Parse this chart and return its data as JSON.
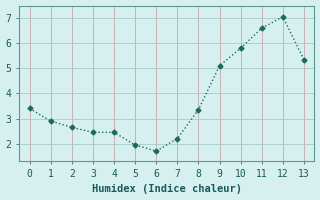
{
  "x": [
    0,
    1,
    2,
    3,
    4,
    5,
    6,
    7,
    8,
    9,
    10,
    11,
    12,
    13
  ],
  "y": [
    3.4,
    2.9,
    2.65,
    2.45,
    2.45,
    1.95,
    1.7,
    2.2,
    3.35,
    5.1,
    5.8,
    6.6,
    7.05,
    5.35
  ],
  "xlabel": "Humidex (Indice chaleur)",
  "xlim": [
    -0.5,
    13.5
  ],
  "ylim": [
    1.3,
    7.5
  ],
  "yticks": [
    2,
    3,
    4,
    5,
    6,
    7
  ],
  "xticks": [
    0,
    1,
    2,
    3,
    4,
    5,
    6,
    7,
    8,
    9,
    10,
    11,
    12,
    13
  ],
  "line_color": "#1a6b5a",
  "marker": "D",
  "marker_size": 2.5,
  "line_width": 1.0,
  "bg_color": "#d6f0ef",
  "vgrid_color": "#c9a8a8",
  "hgrid_color": "#a8cdc9",
  "xlabel_fontsize": 7.5,
  "tick_fontsize": 7
}
